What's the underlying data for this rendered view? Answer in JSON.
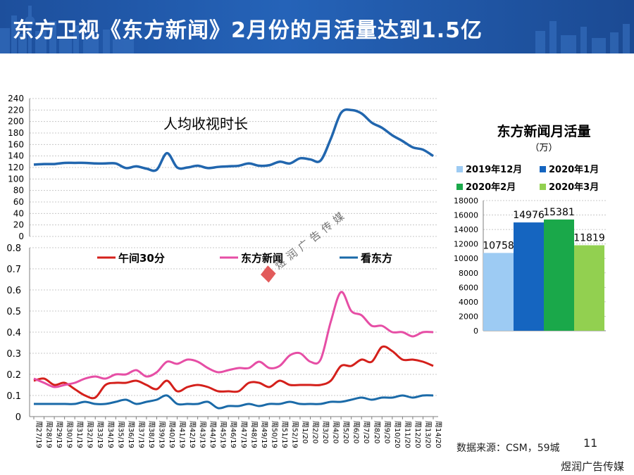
{
  "title": "东方卫视《东方新闻》2月份的月活量达到1.5亿",
  "colors": {
    "banner": "#1f56a5",
    "time_line": "#2166ae",
    "noon30": "#d4201b",
    "dongfang_news": "#e64ea5",
    "kan_dongfang": "#1a6aa8",
    "dec2019": "#9dcbf3",
    "jan2020": "#1565c0",
    "feb2020": "#1aa84a",
    "mar2020": "#92d050"
  },
  "source_note": "数据来源：CSM，59城",
  "page_number": "11",
  "watermark": "煜润广告传媒",
  "corner_label": "煜润广告传媒",
  "chart_data": [
    {
      "type": "line",
      "title": "人均收视时长",
      "y_ticks": [
        "0",
        "20",
        "40",
        "60",
        "80",
        "100",
        "120",
        "140",
        "160",
        "180",
        "200",
        "220",
        "240"
      ],
      "ylim": [
        0,
        240
      ],
      "grid": true,
      "x": [
        "周27/19",
        "周28/19",
        "周29/19",
        "周30/19",
        "周31/19",
        "周32/19",
        "周33/19",
        "周34/19",
        "周35/19",
        "周36/19",
        "周37/19",
        "周38/19",
        "周39/19",
        "周40/19",
        "周41/19",
        "周42/19",
        "周43/19",
        "周44/19",
        "周45/19",
        "周46/19",
        "周47/19",
        "周48/19",
        "周49/19",
        "周50/19",
        "周51/19",
        "周52/19",
        "周1/20",
        "周2/20",
        "周3/20",
        "周4/20",
        "周5/20",
        "周6/20",
        "周7/20",
        "周8/20",
        "周9/20",
        "周10/20",
        "周11/20",
        "周12/20",
        "周13/20",
        "周14/20"
      ],
      "series": [
        {
          "values": [
            125,
            126,
            126,
            128,
            128,
            128,
            127,
            127,
            127,
            119,
            122,
            118,
            116,
            145,
            120,
            120,
            123,
            119,
            121,
            122,
            123,
            127,
            123,
            124,
            130,
            127,
            136,
            134,
            132,
            170,
            215,
            220,
            214,
            198,
            189,
            176,
            166,
            155,
            151,
            140
          ]
        }
      ]
    },
    {
      "type": "line",
      "ylim": [
        0,
        0.8
      ],
      "y_ticks": [
        "0",
        "0.1",
        "0.2",
        "0.3",
        "0.4",
        "0.5",
        "0.6",
        "0.7",
        "0.8"
      ],
      "grid": true,
      "legend_position": "top",
      "x": [
        "周27/19",
        "周28/19",
        "周29/19",
        "周30/19",
        "周31/19",
        "周32/19",
        "周33/19",
        "周34/19",
        "周35/19",
        "周36/19",
        "周37/19",
        "周38/19",
        "周39/19",
        "周40/19",
        "周41/19",
        "周42/19",
        "周43/19",
        "周44/19",
        "周45/19",
        "周46/19",
        "周47/19",
        "周48/19",
        "周49/19",
        "周50/19",
        "周51/19",
        "周52/19",
        "周1/20",
        "周2/20",
        "周3/20",
        "周4/20",
        "周5/20",
        "周6/20",
        "周7/20",
        "周8/20",
        "周9/20",
        "周10/20",
        "周11/20",
        "周12/20",
        "周13/20",
        "周14/20"
      ],
      "series": [
        {
          "name": "午间30分",
          "values": [
            0.17,
            0.18,
            0.15,
            0.16,
            0.13,
            0.1,
            0.09,
            0.15,
            0.16,
            0.16,
            0.17,
            0.15,
            0.13,
            0.17,
            0.12,
            0.14,
            0.15,
            0.14,
            0.12,
            0.12,
            0.12,
            0.16,
            0.16,
            0.14,
            0.17,
            0.15,
            0.15,
            0.15,
            0.15,
            0.17,
            0.24,
            0.24,
            0.27,
            0.26,
            0.33,
            0.31,
            0.27,
            0.27,
            0.26,
            0.24
          ]
        },
        {
          "name": "东方新闻",
          "values": [
            0.18,
            0.16,
            0.14,
            0.15,
            0.16,
            0.18,
            0.19,
            0.18,
            0.2,
            0.2,
            0.22,
            0.19,
            0.21,
            0.26,
            0.25,
            0.27,
            0.26,
            0.23,
            0.21,
            0.22,
            0.23,
            0.23,
            0.26,
            0.23,
            0.24,
            0.29,
            0.3,
            0.26,
            0.27,
            0.45,
            0.59,
            0.5,
            0.48,
            0.43,
            0.43,
            0.4,
            0.4,
            0.38,
            0.4,
            0.4
          ]
        },
        {
          "name": "看东方",
          "values": [
            0.06,
            0.06,
            0.06,
            0.06,
            0.06,
            0.07,
            0.06,
            0.06,
            0.07,
            0.08,
            0.06,
            0.07,
            0.08,
            0.1,
            0.06,
            0.06,
            0.06,
            0.07,
            0.04,
            0.05,
            0.05,
            0.06,
            0.05,
            0.06,
            0.06,
            0.07,
            0.06,
            0.06,
            0.06,
            0.07,
            0.07,
            0.08,
            0.09,
            0.08,
            0.09,
            0.09,
            0.1,
            0.09,
            0.1,
            0.1
          ]
        }
      ]
    },
    {
      "type": "bar",
      "title": "东方新闻月活量",
      "subtitle": "（万）",
      "ylim": [
        0,
        18000
      ],
      "y_ticks": [
        "0",
        "2000",
        "4000",
        "6000",
        "8000",
        "10000",
        "12000",
        "14000",
        "16000",
        "18000"
      ],
      "grid": true,
      "legend_position": "top",
      "categories": [
        "2019年12月",
        "2020年1月",
        "2020年2月",
        "2020年3月"
      ],
      "values": [
        10758,
        14976,
        15381,
        11819
      ],
      "value_labels": [
        "10758",
        "14976",
        "15381",
        "11819"
      ]
    }
  ]
}
